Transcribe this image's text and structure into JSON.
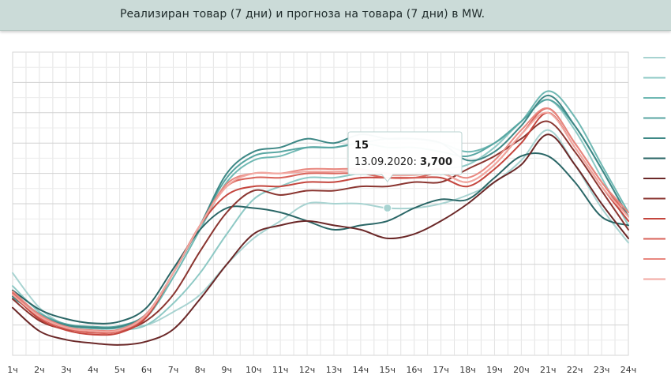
{
  "title": "Реализиран товар (7 дни) и прогноза на товара (7 дни) в MW.",
  "tooltip": {
    "title": "15",
    "date": "13.09.2020",
    "value": "3,700",
    "series_index": 0,
    "hour_index": 14
  },
  "chart_data": {
    "type": "line",
    "title": "Реализиран товар (7 дни) и прогноза на товара (7 дни) в MW.",
    "x": [
      "1ч",
      "2ч",
      "3ч",
      "4ч",
      "5ч",
      "6ч",
      "7ч",
      "8ч",
      "9ч",
      "10ч",
      "11ч",
      "12ч",
      "13ч",
      "14ч",
      "15ч",
      "16ч",
      "17ч",
      "18ч",
      "19ч",
      "20ч",
      "21ч",
      "22ч",
      "23ч",
      "24ч"
    ],
    "ylim": [
      2000,
      5500
    ],
    "grid": true,
    "legend": "right",
    "series": [
      {
        "color": "#a8d3d1",
        "values": [
          2950,
          2550,
          2350,
          2320,
          2330,
          2350,
          2500,
          2700,
          3050,
          3350,
          3550,
          3750,
          3750,
          3750,
          3700,
          3700,
          3750,
          3850,
          4000,
          4250,
          4600,
          4200,
          3700,
          3300
        ]
      },
      {
        "color": "#8ec9c5",
        "values": [
          2800,
          2500,
          2340,
          2280,
          2290,
          2350,
          2600,
          2950,
          3400,
          3800,
          3950,
          4050,
          4050,
          4100,
          4100,
          4100,
          4150,
          4200,
          4400,
          4700,
          4950,
          4600,
          4050,
          3500
        ]
      },
      {
        "color": "#6fb8b3",
        "values": [
          2700,
          2480,
          2350,
          2310,
          2320,
          2440,
          2900,
          3450,
          4000,
          4250,
          4300,
          4400,
          4400,
          4450,
          4500,
          4500,
          4450,
          4350,
          4450,
          4700,
          5050,
          4750,
          4200,
          3650
        ]
      },
      {
        "color": "#58a6a2",
        "values": [
          2660,
          2480,
          2360,
          2330,
          2340,
          2480,
          2950,
          3500,
          4050,
          4300,
          4350,
          4400,
          4400,
          4450,
          4400,
          4400,
          4350,
          4300,
          4450,
          4700,
          4950,
          4650,
          4150,
          3600
        ]
      },
      {
        "color": "#3e8886",
        "values": [
          2680,
          2460,
          2350,
          2320,
          2330,
          2480,
          2950,
          3500,
          4100,
          4350,
          4400,
          4500,
          4450,
          4550,
          4500,
          4500,
          4450,
          4250,
          4350,
          4650,
          5000,
          4650,
          4150,
          3600
        ]
      },
      {
        "color": "#2a6666",
        "values": [
          2750,
          2530,
          2420,
          2370,
          2390,
          2550,
          3000,
          3450,
          3700,
          3700,
          3650,
          3550,
          3450,
          3500,
          3550,
          3700,
          3800,
          3800,
          4050,
          4300,
          4300,
          4000,
          3600,
          3500
        ]
      },
      {
        "color": "#6b2828",
        "values": [
          2550,
          2280,
          2180,
          2140,
          2120,
          2160,
          2300,
          2650,
          3050,
          3400,
          3500,
          3550,
          3500,
          3450,
          3350,
          3400,
          3550,
          3750,
          4000,
          4200,
          4550,
          4200,
          3750,
          3350
        ]
      },
      {
        "color": "#8a3530",
        "values": [
          2650,
          2400,
          2300,
          2280,
          2280,
          2400,
          2700,
          3200,
          3650,
          3900,
          3850,
          3900,
          3900,
          3950,
          3950,
          4000,
          4000,
          4150,
          4300,
          4500,
          4700,
          4350,
          3900,
          3450
        ]
      },
      {
        "color": "#c4453d",
        "values": [
          2700,
          2420,
          2290,
          2240,
          2260,
          2440,
          2950,
          3500,
          3850,
          3950,
          3950,
          4000,
          4000,
          4050,
          4050,
          4050,
          4050,
          3950,
          4150,
          4450,
          4800,
          4400,
          3950,
          3550
        ]
      },
      {
        "color": "#d9635a",
        "values": [
          2720,
          2440,
          2310,
          2260,
          2280,
          2460,
          2950,
          3500,
          3950,
          4050,
          4050,
          4100,
          4100,
          4100,
          4050,
          4050,
          4100,
          4000,
          4200,
          4550,
          4850,
          4450,
          4000,
          3600
        ]
      },
      {
        "color": "#e8877f",
        "values": [
          2740,
          2470,
          2330,
          2290,
          2300,
          2480,
          2950,
          3500,
          3980,
          4100,
          4100,
          4150,
          4150,
          4150,
          4100,
          4100,
          4150,
          4050,
          4250,
          4600,
          4850,
          4450,
          4000,
          3650
        ]
      },
      {
        "color": "#f2a8a1",
        "values": [
          2700,
          2450,
          2320,
          2280,
          2290,
          2470,
          2950,
          3500,
          3950,
          4100,
          4100,
          4120,
          4120,
          4130,
          4080,
          4080,
          4100,
          4000,
          4200,
          4550,
          4800,
          4400,
          3950,
          3600
        ]
      }
    ]
  }
}
